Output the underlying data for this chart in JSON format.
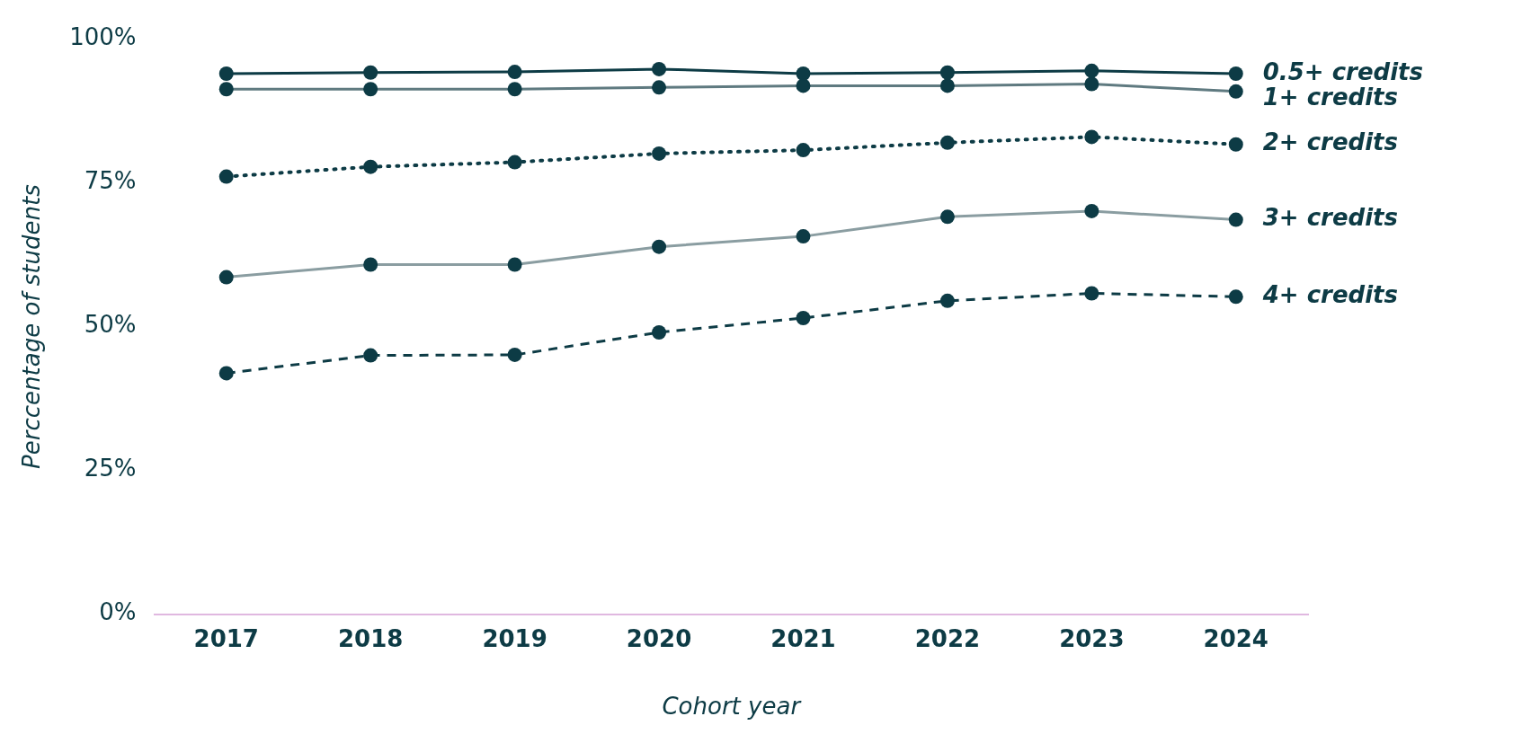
{
  "chart_data": {
    "type": "line",
    "xlabel": "Cohort year",
    "ylabel": "Perccentage of students",
    "categories": [
      "2017",
      "2018",
      "2019",
      "2020",
      "2021",
      "2022",
      "2023",
      "2024"
    ],
    "ylim": [
      0,
      100
    ],
    "yticks": [
      {
        "value": 0,
        "label": "0%"
      },
      {
        "value": 25,
        "label": "25%"
      },
      {
        "value": 50,
        "label": "50%"
      },
      {
        "value": 75,
        "label": "75%"
      },
      {
        "value": 100,
        "label": "100%"
      }
    ],
    "grid": false,
    "legend": false,
    "marker": "circle",
    "series": [
      {
        "name": "0.5+ credits",
        "color": "#0d3b45",
        "line_style": "solid",
        "values": [
          94.0,
          94.2,
          94.3,
          94.8,
          94.0,
          94.2,
          94.5,
          94.0
        ]
      },
      {
        "name": "1+ credits",
        "color": "#5f7a80",
        "line_style": "solid",
        "values": [
          91.3,
          91.3,
          91.3,
          91.6,
          91.9,
          91.9,
          92.2,
          90.9
        ]
      },
      {
        "name": "2+ credits",
        "color": "#0d3b45",
        "line_style": "dotted",
        "values": [
          76.1,
          77.8,
          78.6,
          80.1,
          80.7,
          82.0,
          83.0,
          81.7
        ]
      },
      {
        "name": "3+ credits",
        "color": "#8a9da1",
        "line_style": "solid",
        "values": [
          58.6,
          60.8,
          60.8,
          63.9,
          65.7,
          69.1,
          70.1,
          68.6
        ]
      },
      {
        "name": "4+ credits",
        "color": "#0d3b45",
        "line_style": "dashed",
        "values": [
          41.9,
          45.0,
          45.1,
          49.0,
          51.5,
          54.5,
          55.8,
          55.2
        ]
      }
    ]
  }
}
